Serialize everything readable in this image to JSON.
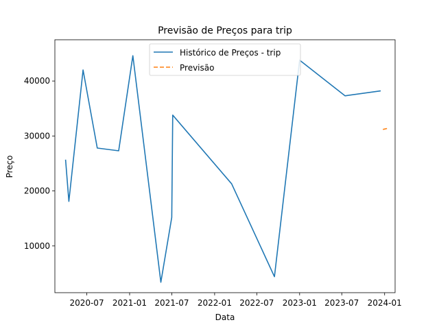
{
  "chart_data": {
    "type": "line",
    "title": "Previsão de Preços para trip",
    "xlabel": "Data",
    "ylabel": "Preço",
    "x_ticks": [
      "2020-07",
      "2021-01",
      "2021-07",
      "2022-01",
      "2022-07",
      "2023-01",
      "2023-07",
      "2024-01"
    ],
    "y_ticks": [
      10000,
      20000,
      30000,
      40000
    ],
    "ylim": [
      1500,
      47500
    ],
    "xlim": [
      "2020-02-15",
      "2024-02-15"
    ],
    "grid": false,
    "legend_position": "top-center",
    "series": [
      {
        "name": "Histórico de Preços - trip",
        "color": "#1f77b4",
        "style": "solid",
        "points": [
          {
            "x": "2020-04-01",
            "y": 25700
          },
          {
            "x": "2020-04-15",
            "y": 18100
          },
          {
            "x": "2020-06-15",
            "y": 42000
          },
          {
            "x": "2020-08-15",
            "y": 27800
          },
          {
            "x": "2020-11-15",
            "y": 27300
          },
          {
            "x": "2021-01-15",
            "y": 44600
          },
          {
            "x": "2021-05-15",
            "y": 3400
          },
          {
            "x": "2021-07-01",
            "y": 15200
          },
          {
            "x": "2021-07-05",
            "y": 33800
          },
          {
            "x": "2022-03-15",
            "y": 21300
          },
          {
            "x": "2022-09-15",
            "y": 4400
          },
          {
            "x": "2023-01-01",
            "y": 43800
          },
          {
            "x": "2023-07-15",
            "y": 37300
          },
          {
            "x": "2023-12-15",
            "y": 38200
          }
        ]
      },
      {
        "name": "Previsão",
        "color": "#ff7f0e",
        "style": "dashed",
        "points": [
          {
            "x": "2023-12-25",
            "y": 31200
          },
          {
            "x": "2024-01-15",
            "y": 31400
          }
        ]
      }
    ]
  }
}
